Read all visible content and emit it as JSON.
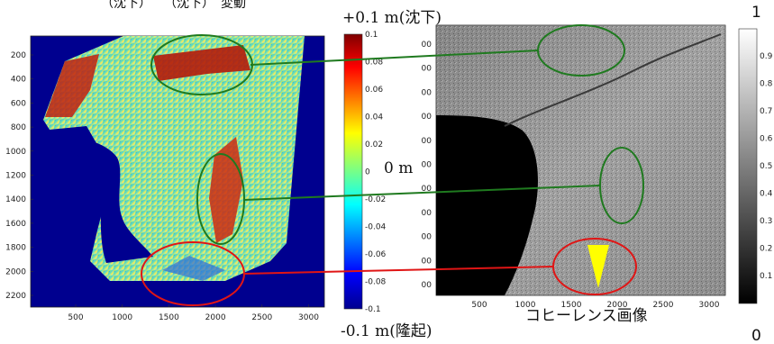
{
  "header_fragment": "（沈下）　　（沈下）　変動",
  "left_map": {
    "y_ticks": [
      "200",
      "400",
      "600",
      "800",
      "1000",
      "1200",
      "1400",
      "1600",
      "1800",
      "2000",
      "2200"
    ],
    "x_ticks": [
      "500",
      "1000",
      "1500",
      "2000",
      "2500",
      "3000"
    ]
  },
  "displacement_colorbar": {
    "top_label": "+0.1 m(沈下)",
    "mid_label": "0 m",
    "bottom_label": "-0.1 m(隆起)",
    "ticks": [
      "0.1",
      "0.08",
      "0.06",
      "0.04",
      "0.02",
      "0",
      "-0.02",
      "-0.04",
      "-0.06",
      "-0.08",
      "-0.1"
    ]
  },
  "right_map": {
    "y_ticks": [
      "00",
      "00",
      "00",
      "00",
      "00",
      "00",
      "00",
      "00",
      "00",
      "00",
      "00"
    ],
    "x_ticks": [
      "500",
      "1000",
      "1500",
      "2000",
      "2500",
      "3000"
    ],
    "caption": "コヒーレンス画像"
  },
  "coherence_colorbar": {
    "top_label": "1",
    "bottom_label": "0",
    "ticks": [
      "0.9",
      "0.8",
      "0.7",
      "0.6",
      "0.5",
      "0.4",
      "0.3",
      "0.2",
      "0.1"
    ]
  },
  "colors": {
    "background_blue": "#00008f",
    "green_marker": "#1f7a1f",
    "red_marker": "#e01515",
    "yellow_marker": "#ffff00"
  }
}
